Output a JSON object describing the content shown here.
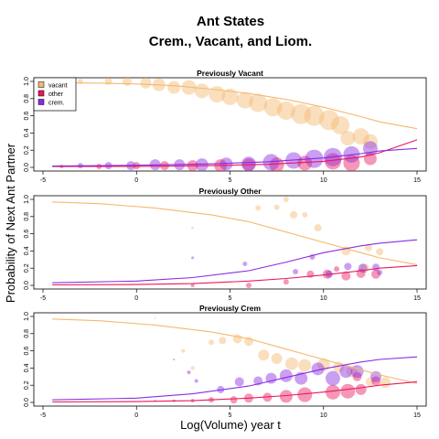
{
  "title": [
    "Ant States",
    "Crem., Vacant, and Liom."
  ],
  "xlabel": "Log(Volume) year t",
  "ylabel": "Probability of Next Ant Partner",
  "legend": [
    {
      "name": "vacant",
      "color": "#F5B86E"
    },
    {
      "name": "other",
      "color": "#E8195E"
    },
    {
      "name": "crem.",
      "color": "#8A2BE2"
    }
  ],
  "chart_data": [
    {
      "type": "scatter",
      "title": "Previously Vacant",
      "xlim": [
        -5,
        15
      ],
      "ylim": [
        0,
        1
      ],
      "xticks": [
        -5,
        0,
        5,
        10,
        15
      ],
      "yticks": [
        "0.0",
        "0.2",
        "0.4",
        "0.6",
        "0.8",
        "1.0"
      ],
      "legend_position": "top-left",
      "series": [
        {
          "name": "vacant",
          "color": "#F5B86E",
          "curve": [
            [
              -4.5,
              0.985
            ],
            [
              -2,
              0.98
            ],
            [
              0,
              0.97
            ],
            [
              2,
              0.95
            ],
            [
              4,
              0.91
            ],
            [
              6,
              0.86
            ],
            [
              8,
              0.79
            ],
            [
              10,
              0.7
            ],
            [
              12,
              0.59
            ],
            [
              13,
              0.53
            ],
            [
              15,
              0.45
            ]
          ],
          "points": [
            [
              -3,
              1.0,
              3
            ],
            [
              -1.5,
              1.0,
              4
            ],
            [
              -0.5,
              1.0,
              5
            ],
            [
              0.5,
              0.98,
              6
            ],
            [
              1.2,
              0.96,
              7
            ],
            [
              2,
              0.93,
              7
            ],
            [
              2.8,
              0.93,
              8
            ],
            [
              3.5,
              0.89,
              8
            ],
            [
              4.3,
              0.85,
              9
            ],
            [
              5,
              0.82,
              9
            ],
            [
              5.8,
              0.78,
              9
            ],
            [
              6.5,
              0.75,
              10
            ],
            [
              7.3,
              0.7,
              10
            ],
            [
              8,
              0.66,
              10
            ],
            [
              8.8,
              0.62,
              11
            ],
            [
              9.5,
              0.6,
              11
            ],
            [
              10.3,
              0.55,
              11
            ],
            [
              10.9,
              0.49,
              10
            ],
            [
              11.3,
              0.34,
              8
            ],
            [
              12,
              0.36,
              9
            ],
            [
              12.5,
              0.3,
              8
            ]
          ]
        },
        {
          "name": "other",
          "color": "#E8195E",
          "curve": [
            [
              -4.5,
              0.01
            ],
            [
              0,
              0.012
            ],
            [
              4,
              0.02
            ],
            [
              7,
              0.035
            ],
            [
              10,
              0.07
            ],
            [
              12,
              0.12
            ],
            [
              13,
              0.17
            ],
            [
              15,
              0.32
            ]
          ],
          "points": [
            [
              -4,
              0.01,
              2
            ],
            [
              -2,
              0.01,
              3
            ],
            [
              0,
              0.02,
              4
            ],
            [
              1.5,
              0.02,
              5
            ],
            [
              3,
              0.02,
              6
            ],
            [
              4.5,
              0.02,
              7
            ],
            [
              6,
              0.03,
              7
            ],
            [
              7.5,
              0.03,
              8
            ],
            [
              9,
              0.05,
              8
            ],
            [
              10.5,
              0.07,
              9
            ],
            [
              11.5,
              0.05,
              9
            ],
            [
              12.5,
              0.1,
              7
            ]
          ]
        },
        {
          "name": "crem.",
          "color": "#8A2BE2",
          "curve": [
            [
              -4.5,
              0.015
            ],
            [
              0,
              0.025
            ],
            [
              4,
              0.04
            ],
            [
              7,
              0.065
            ],
            [
              10,
              0.11
            ],
            [
              12,
              0.16
            ],
            [
              13,
              0.19
            ],
            [
              15,
              0.22
            ]
          ],
          "points": [
            [
              -3,
              0.02,
              3
            ],
            [
              -1.5,
              0.02,
              4
            ],
            [
              -0.3,
              0.02,
              5
            ],
            [
              1,
              0.03,
              6
            ],
            [
              2.3,
              0.03,
              6
            ],
            [
              3.5,
              0.03,
              7
            ],
            [
              4.8,
              0.04,
              7
            ],
            [
              6,
              0.04,
              8
            ],
            [
              7.2,
              0.06,
              9
            ],
            [
              8.4,
              0.08,
              9
            ],
            [
              9.5,
              0.1,
              10
            ],
            [
              10.5,
              0.12,
              10
            ],
            [
              11.5,
              0.15,
              9
            ],
            [
              12.5,
              0.22,
              8
            ]
          ]
        }
      ]
    },
    {
      "type": "scatter",
      "title": "Previously Other",
      "xlim": [
        -5,
        15
      ],
      "ylim": [
        0,
        1
      ],
      "xticks": [
        -5,
        0,
        5,
        10,
        15
      ],
      "yticks": [
        "0.0",
        "0.2",
        "0.4",
        "0.6",
        "0.8",
        "1.0"
      ],
      "series": [
        {
          "name": "vacant",
          "color": "#F5B86E",
          "curve": [
            [
              -4.5,
              0.97
            ],
            [
              -2,
              0.95
            ],
            [
              1,
              0.9
            ],
            [
              4,
              0.82
            ],
            [
              6,
              0.74
            ],
            [
              8,
              0.62
            ],
            [
              10,
              0.5
            ],
            [
              12,
              0.38
            ],
            [
              13,
              0.32
            ],
            [
              15,
              0.24
            ]
          ],
          "points": [
            [
              3,
              0.67,
              1.5
            ],
            [
              6.5,
              0.9,
              3
            ],
            [
              7.5,
              0.91,
              3
            ],
            [
              8,
              1.0,
              3
            ],
            [
              8.4,
              0.82,
              4
            ],
            [
              9,
              0.82,
              3
            ],
            [
              9.7,
              0.67,
              4
            ],
            [
              11.2,
              0.4,
              5
            ],
            [
              12.4,
              0.44,
              4
            ],
            [
              13,
              0.39,
              4
            ],
            [
              12.2,
              0.2,
              5
            ]
          ]
        },
        {
          "name": "other",
          "color": "#E8195E",
          "curve": [
            [
              -4.5,
              0.005
            ],
            [
              0,
              0.01
            ],
            [
              3,
              0.02
            ],
            [
              6,
              0.05
            ],
            [
              8,
              0.08
            ],
            [
              10,
              0.12
            ],
            [
              12,
              0.17
            ],
            [
              13,
              0.2
            ],
            [
              15,
              0.23
            ]
          ],
          "points": [
            [
              3,
              0.0,
              2
            ],
            [
              6,
              0.0,
              3
            ],
            [
              8,
              0.04,
              3
            ],
            [
              9.3,
              0.13,
              4
            ],
            [
              10.2,
              0.13,
              5
            ],
            [
              11.2,
              0.11,
              5
            ],
            [
              12,
              0.14,
              5
            ],
            [
              12.8,
              0.13,
              5
            ],
            [
              10.7,
              0.19,
              3
            ]
          ]
        },
        {
          "name": "crem.",
          "color": "#8A2BE2",
          "curve": [
            [
              -4.5,
              0.03
            ],
            [
              0,
              0.05
            ],
            [
              3,
              0.09
            ],
            [
              6,
              0.17
            ],
            [
              8,
              0.27
            ],
            [
              10,
              0.38
            ],
            [
              12,
              0.46
            ],
            [
              13,
              0.49
            ],
            [
              15,
              0.53
            ]
          ],
          "points": [
            [
              3,
              0.32,
              1.5
            ],
            [
              5.8,
              0.25,
              2.5
            ],
            [
              8.5,
              0.16,
              3
            ],
            [
              9.4,
              0.33,
              3
            ],
            [
              10.3,
              0.13,
              4
            ],
            [
              11.3,
              0.22,
              4
            ],
            [
              12.1,
              0.2,
              5
            ],
            [
              13,
              0.15,
              3
            ],
            [
              12.8,
              0.21,
              4
            ]
          ]
        }
      ]
    },
    {
      "type": "scatter",
      "title": "Previously Crem",
      "xlim": [
        -5,
        15
      ],
      "ylim": [
        0,
        1
      ],
      "xticks": [
        -5,
        0,
        5,
        10,
        15
      ],
      "yticks": [
        "0.0",
        "0.2",
        "0.4",
        "0.6",
        "0.8",
        "1.0"
      ],
      "series": [
        {
          "name": "vacant",
          "color": "#F5B86E",
          "curve": [
            [
              -4.5,
              0.97
            ],
            [
              -2,
              0.95
            ],
            [
              1,
              0.9
            ],
            [
              4,
              0.82
            ],
            [
              6,
              0.74
            ],
            [
              8,
              0.62
            ],
            [
              10,
              0.5
            ],
            [
              12,
              0.38
            ],
            [
              13,
              0.32
            ],
            [
              15,
              0.22
            ]
          ],
          "points": [
            [
              1,
              0.98,
              1
            ],
            [
              2.5,
              0.6,
              2
            ],
            [
              3,
              0.4,
              2
            ],
            [
              4,
              0.7,
              3
            ],
            [
              4.6,
              0.72,
              4
            ],
            [
              5.4,
              0.74,
              5
            ],
            [
              6,
              0.71,
              5
            ],
            [
              6.8,
              0.55,
              6
            ],
            [
              7.5,
              0.51,
              6
            ],
            [
              8.3,
              0.45,
              7
            ],
            [
              9,
              0.43,
              7
            ],
            [
              10,
              0.44,
              7
            ],
            [
              10.8,
              0.41,
              6
            ],
            [
              11.5,
              0.36,
              6
            ],
            [
              12.5,
              0.24,
              5
            ],
            [
              13.3,
              0.23,
              6
            ]
          ]
        },
        {
          "name": "other",
          "color": "#E8195E",
          "curve": [
            [
              -4.5,
              0.005
            ],
            [
              0,
              0.01
            ],
            [
              3,
              0.02
            ],
            [
              6,
              0.05
            ],
            [
              8,
              0.08
            ],
            [
              10,
              0.12
            ],
            [
              12,
              0.17
            ],
            [
              13,
              0.2
            ],
            [
              15,
              0.24
            ]
          ],
          "points": [
            [
              1,
              0.02,
              1
            ],
            [
              2,
              0.02,
              1.5
            ],
            [
              3,
              0.02,
              2
            ],
            [
              4,
              0.03,
              3
            ],
            [
              5.2,
              0.03,
              4
            ],
            [
              6,
              0.05,
              5
            ],
            [
              7,
              0.06,
              5
            ],
            [
              8,
              0.07,
              7
            ],
            [
              9,
              0.09,
              8
            ],
            [
              10.5,
              0.12,
              8
            ],
            [
              11.3,
              0.13,
              8
            ],
            [
              12,
              0.15,
              6
            ],
            [
              12.8,
              0.25,
              5
            ],
            [
              11.8,
              0.3,
              5
            ]
          ]
        },
        {
          "name": "crem.",
          "color": "#8A2BE2",
          "curve": [
            [
              -4.5,
              0.03
            ],
            [
              0,
              0.05
            ],
            [
              3,
              0.1
            ],
            [
              6,
              0.19
            ],
            [
              8,
              0.29
            ],
            [
              10,
              0.39
            ],
            [
              12,
              0.47
            ],
            [
              13,
              0.5
            ],
            [
              15,
              0.53
            ]
          ],
          "points": [
            [
              2,
              0.5,
              1
            ],
            [
              2.8,
              0.35,
              2
            ],
            [
              3.2,
              0.25,
              2
            ],
            [
              4.5,
              0.15,
              4
            ],
            [
              5.5,
              0.24,
              5
            ],
            [
              6.5,
              0.25,
              5
            ],
            [
              7.2,
              0.28,
              6
            ],
            [
              8,
              0.31,
              7
            ],
            [
              8.8,
              0.28,
              7
            ],
            [
              9.7,
              0.39,
              7
            ],
            [
              10.5,
              0.28,
              8
            ],
            [
              11.2,
              0.36,
              7
            ],
            [
              11.8,
              0.36,
              7
            ],
            [
              12.8,
              0.3,
              6
            ]
          ]
        }
      ]
    }
  ]
}
